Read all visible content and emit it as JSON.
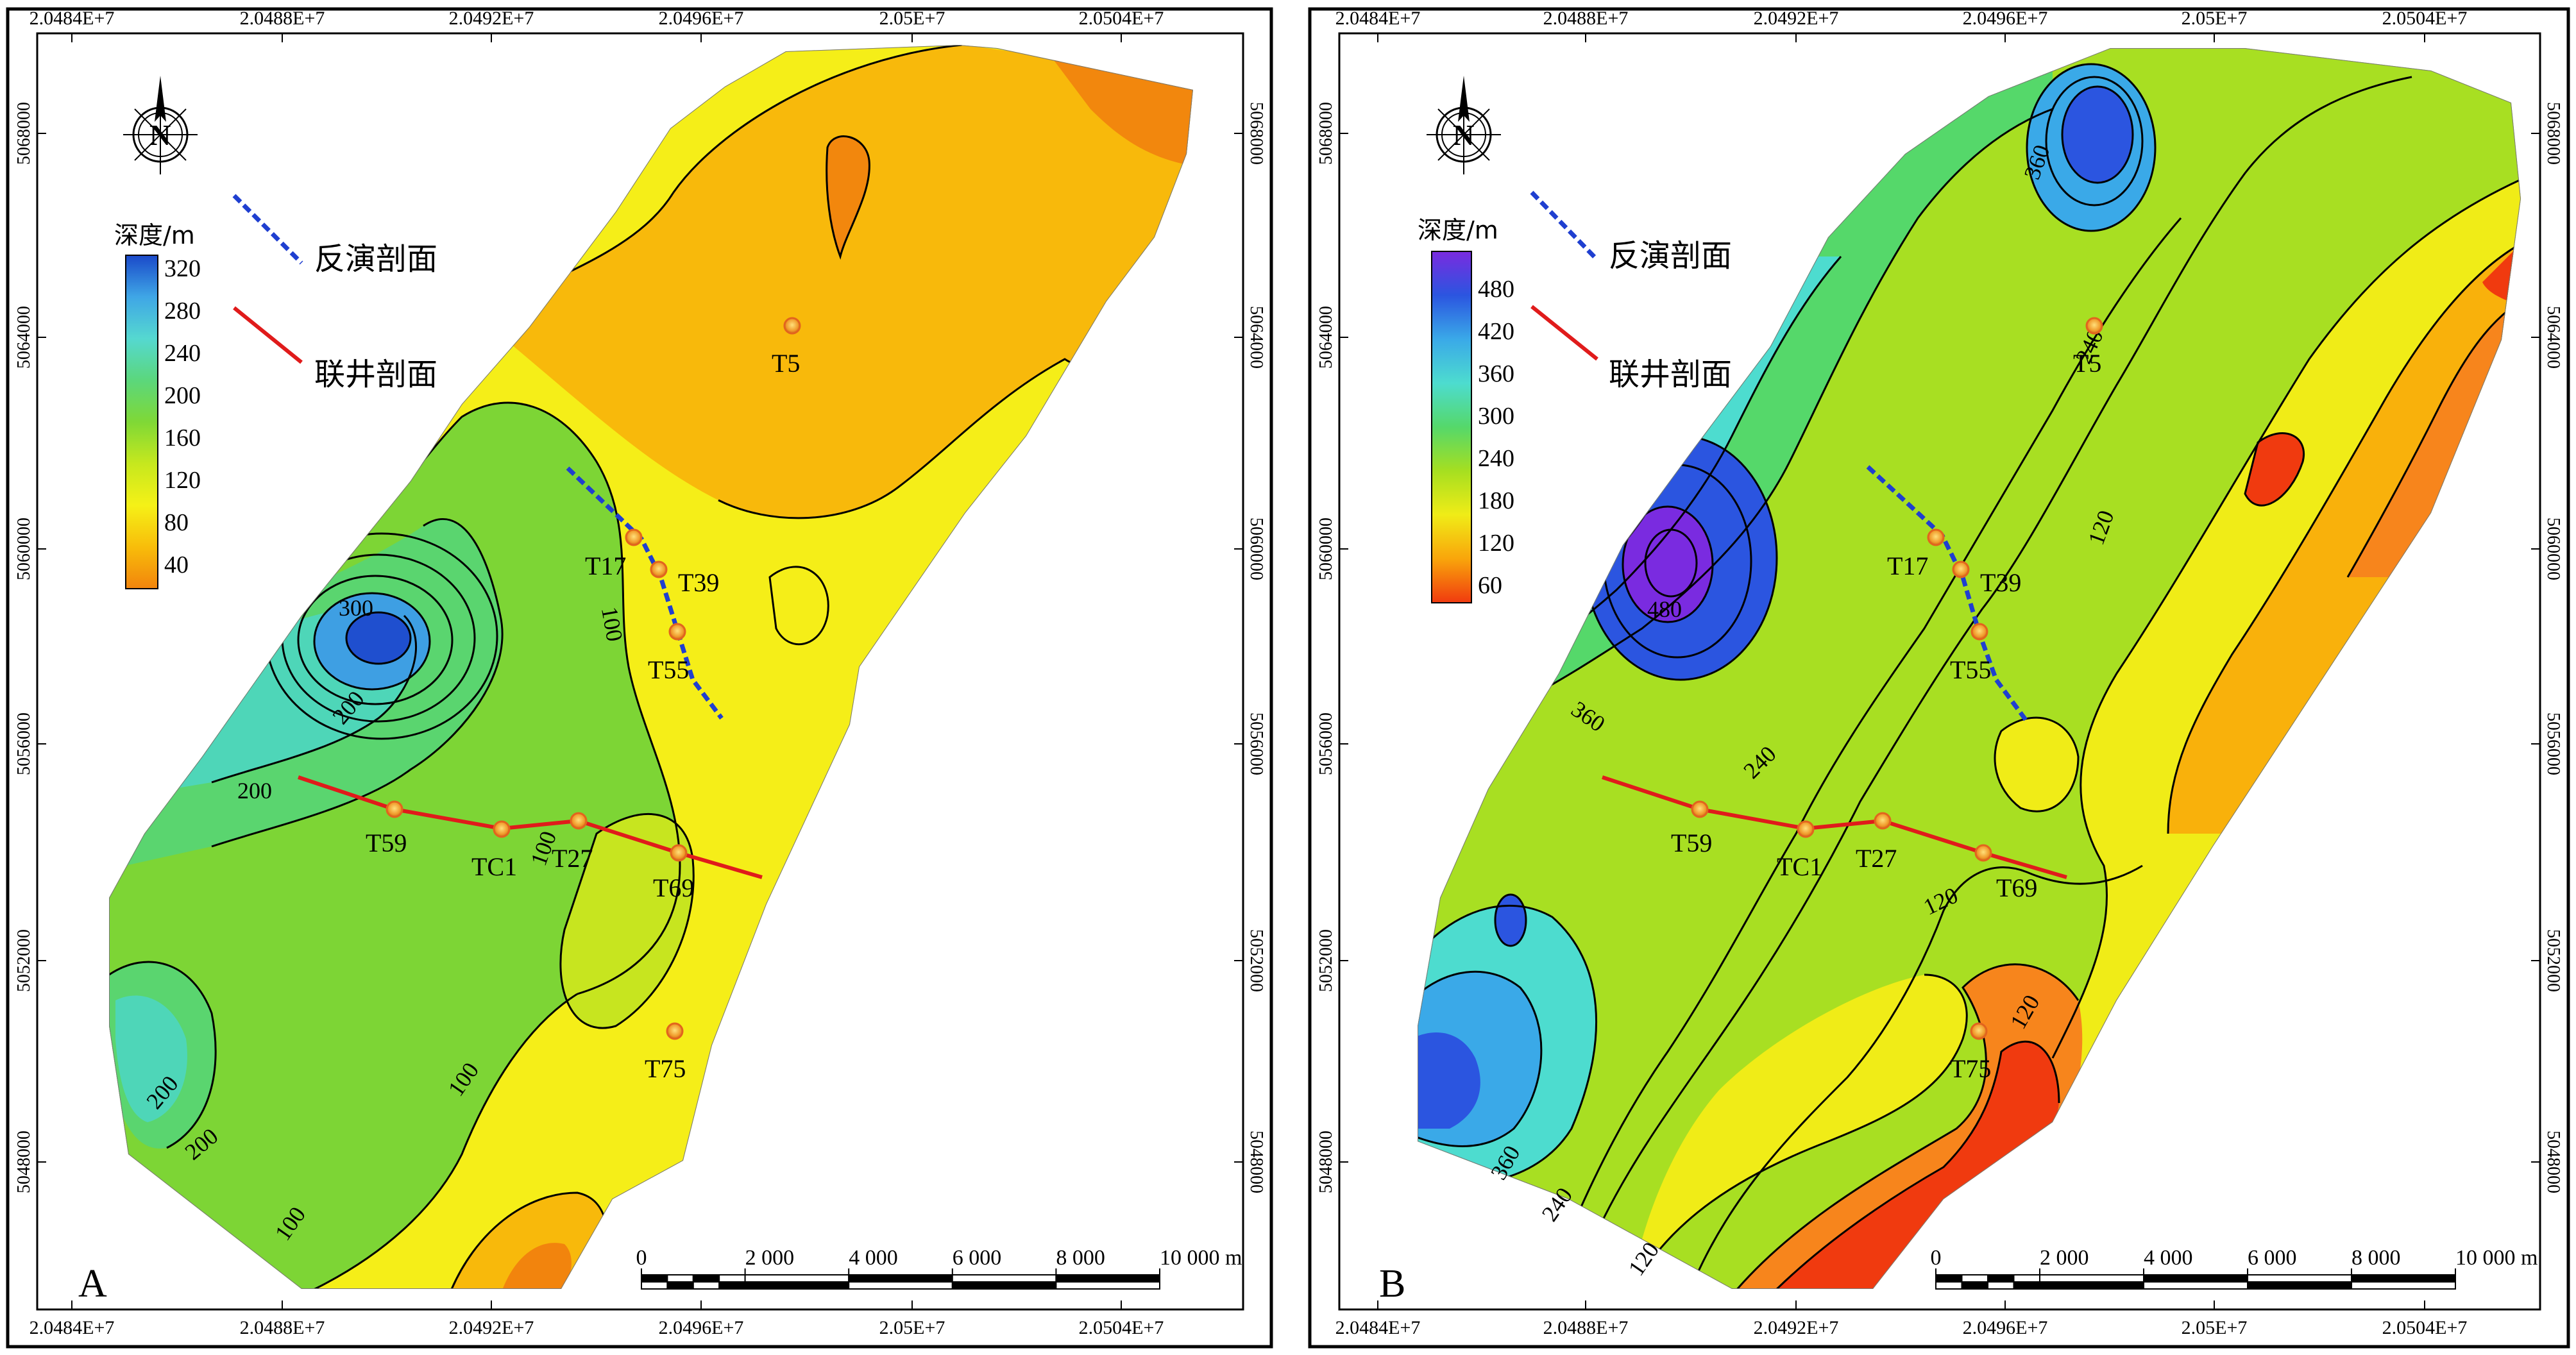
{
  "panels": [
    {
      "id": "A",
      "letter": "A",
      "x_ticks": [
        "2.0484E+7",
        "2.0488E+7",
        "2.0492E+7",
        "2.0496E+7",
        "2.05E+7",
        "2.0504E+7"
      ],
      "y_ticks": [
        "5068000",
        "5064000",
        "5060000",
        "5056000",
        "5052000",
        "5048000"
      ],
      "legend": {
        "title": "深度/m",
        "ticks": [
          "320",
          "280",
          "240",
          "200",
          "160",
          "120",
          "80",
          "40"
        ],
        "gradient": [
          "#1a49c9",
          "#3fa6e6",
          "#55d8d0",
          "#5bd77c",
          "#7fd836",
          "#c6e81e",
          "#f5f117",
          "#f8bd0a",
          "#f2840d"
        ]
      },
      "contour_labels": [
        "300",
        "200",
        "200",
        "100",
        "100",
        "100",
        "200",
        "200",
        "100"
      ],
      "wells": [
        {
          "name": "T5"
        },
        {
          "name": "T17"
        },
        {
          "name": "T39"
        },
        {
          "name": "T55"
        },
        {
          "name": "T59"
        },
        {
          "name": "TC1"
        },
        {
          "name": "T27"
        },
        {
          "name": "T69"
        },
        {
          "name": "T75"
        }
      ]
    },
    {
      "id": "B",
      "letter": "B",
      "x_ticks": [
        "2.0484E+7",
        "2.0488E+7",
        "2.0492E+7",
        "2.0496E+7",
        "2.05E+7",
        "2.0504E+7"
      ],
      "y_ticks": [
        "5068000",
        "5064000",
        "5060000",
        "5056000",
        "5052000",
        "5048000"
      ],
      "legend": {
        "title": "深度/m",
        "ticks": [
          "480",
          "420",
          "360",
          "300",
          "240",
          "180",
          "120",
          "60"
        ],
        "gradient": [
          "#7a2be0",
          "#2b55e0",
          "#3aa9e8",
          "#4ddccf",
          "#55d86a",
          "#a6df20",
          "#f0ec17",
          "#f9a50b",
          "#f03a0f"
        ]
      },
      "contour_labels": [
        "360",
        "240",
        "480",
        "360",
        "240",
        "120",
        "120",
        "120",
        "360",
        "240",
        "120"
      ],
      "wells": [
        {
          "name": "T5"
        },
        {
          "name": "T17"
        },
        {
          "name": "T39"
        },
        {
          "name": "T55"
        },
        {
          "name": "T59"
        },
        {
          "name": "TC1"
        },
        {
          "name": "T27"
        },
        {
          "name": "T69"
        },
        {
          "name": "T75"
        }
      ]
    }
  ],
  "legend_lines": {
    "inversion_section": {
      "label": "反演剖面",
      "color": "#1f3fd0"
    },
    "well_section": {
      "label": "联井剖面",
      "color": "#e01b1b"
    }
  },
  "compass": {
    "label": "N"
  },
  "scale_bar": {
    "labels": [
      "0",
      "2 000",
      "4 000",
      "6 000",
      "8 000",
      "10 000 m"
    ]
  }
}
